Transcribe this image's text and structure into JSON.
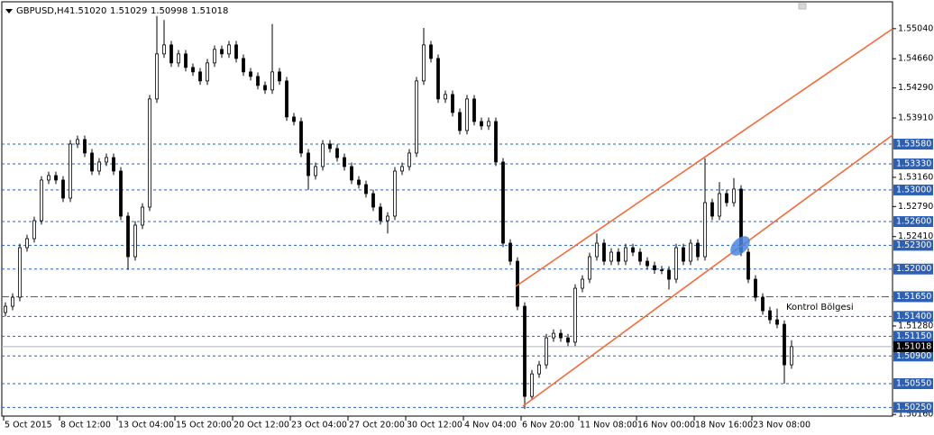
{
  "chart_data": {
    "type": "candlestick",
    "title": "GBPUSD,H4",
    "header_quote": [
      "1.51020",
      "1.51029",
      "1.50998",
      "1.51018"
    ],
    "annotation": "Kontrol Bölgesi",
    "ylim": [
      1.5014,
      1.5538
    ],
    "xlim": [
      -0.5,
      123
    ],
    "bull_color": "#ffffff",
    "bear_color": "#000000",
    "level_color": "#2d5fb3",
    "current_price": {
      "value": 1.51018,
      "label": "1.51018"
    },
    "current_price_color": "#b0b0b0",
    "yticks": [
      {
        "value": 1.5504,
        "label": "1.55040"
      },
      {
        "value": 1.5466,
        "label": "1.54660"
      },
      {
        "value": 1.5429,
        "label": "1.54290"
      },
      {
        "value": 1.5391,
        "label": "1.53910"
      },
      {
        "value": 1.5316,
        "label": "1.53160"
      },
      {
        "value": 1.5279,
        "label": "1.52790"
      },
      {
        "value": 1.5241,
        "label": "1.52410"
      },
      {
        "value": 1.5128,
        "label": "1.51280"
      },
      {
        "value": 1.5016,
        "label": "1.50160"
      }
    ],
    "levels": [
      {
        "value": 1.5358,
        "label": "1.53580",
        "style": "dash"
      },
      {
        "value": 1.5333,
        "label": "1.53330",
        "style": "dash"
      },
      {
        "value": 1.53,
        "label": "1.53000",
        "style": "dash"
      },
      {
        "value": 1.526,
        "label": "1.52600",
        "style": "dash"
      },
      {
        "value": 1.523,
        "label": "1.52300",
        "style": "dash"
      },
      {
        "value": 1.52,
        "label": "1.52000",
        "style": "dash"
      },
      {
        "value": 1.5165,
        "label": "1.51650",
        "style": "dashdot"
      },
      {
        "value": 1.514,
        "label": "1.51400",
        "style": "dash"
      },
      {
        "value": 1.5115,
        "label": "1.51150",
        "style": "dash"
      },
      {
        "value": 1.509,
        "label": "1.50900",
        "style": "dash"
      },
      {
        "value": 1.5055,
        "label": "1.50550",
        "style": "dash"
      },
      {
        "value": 1.5025,
        "label": "1.50250",
        "style": "dash"
      }
    ],
    "xticks": [
      {
        "value": -0.25,
        "label": "5 Oct 2015"
      },
      {
        "value": 7.5,
        "label": "8 Oct 12:00"
      },
      {
        "value": 15.5,
        "label": "13 Oct 04:00"
      },
      {
        "value": 23.5,
        "label": "15 Oct 20:00"
      },
      {
        "value": 31.5,
        "label": "20 Oct 12:00"
      },
      {
        "value": 39.5,
        "label": "23 Oct 04:00"
      },
      {
        "value": 47.5,
        "label": "27 Oct 20:00"
      },
      {
        "value": 55.5,
        "label": "30 Oct 12:00"
      },
      {
        "value": 63.5,
        "label": "4 Nov 04:00"
      },
      {
        "value": 71.5,
        "label": "6 Nov 20:00"
      },
      {
        "value": 79.5,
        "label": "11 Nov 08:00"
      },
      {
        "value": 87.5,
        "label": "16 Nov 00:00"
      },
      {
        "value": 95.5,
        "label": "18 Nov 16:00"
      },
      {
        "value": 103.5,
        "label": "23 Nov 08:00"
      }
    ],
    "candles": [
      [
        1.5145,
        1.51579,
        1.514,
        1.51529
      ],
      [
        1.51529,
        1.51693,
        1.51479,
        1.51643
      ],
      [
        1.51643,
        1.5232,
        1.51593,
        1.5227
      ],
      [
        1.5227,
        1.52434,
        1.5222,
        1.52384
      ],
      [
        1.52384,
        1.52662,
        1.52334,
        1.52612
      ],
      [
        1.52612,
        1.53175,
        1.52562,
        1.53125
      ],
      [
        1.53125,
        1.53232,
        1.53075,
        1.53182
      ],
      [
        1.53182,
        1.53232,
        1.53075,
        1.53125
      ],
      [
        1.53125,
        1.53175,
        1.52847,
        1.52897
      ],
      [
        1.52897,
        1.53631,
        1.52847,
        1.53581
      ],
      [
        1.53581,
        1.53688,
        1.53531,
        1.53638
      ],
      [
        1.53638,
        1.53688,
        1.53417,
        1.53467
      ],
      [
        1.53467,
        1.53517,
        1.53189,
        1.53239
      ],
      [
        1.53239,
        1.53403,
        1.53189,
        1.53353
      ],
      [
        1.53353,
        1.5346,
        1.53303,
        1.5341
      ],
      [
        1.5341,
        1.5346,
        1.53189,
        1.53239
      ],
      [
        1.53239,
        1.53289,
        1.52619,
        1.52669
      ],
      [
        1.52669,
        1.52719,
        1.5199,
        1.52156
      ],
      [
        1.52156,
        1.52605,
        1.52106,
        1.52555
      ],
      [
        1.52555,
        1.52833,
        1.52505,
        1.52783
      ],
      [
        1.52783,
        1.54201,
        1.52733,
        1.54151
      ],
      [
        1.54151,
        1.552,
        1.54101,
        1.54721
      ],
      [
        1.54721,
        1.5515,
        1.54671,
        1.54835
      ],
      [
        1.54835,
        1.54885,
        1.54557,
        1.54607
      ],
      [
        1.54607,
        1.54771,
        1.54557,
        1.54721
      ],
      [
        1.54721,
        1.54771,
        1.545,
        1.5455
      ],
      [
        1.5455,
        1.546,
        1.54443,
        1.54493
      ],
      [
        1.54493,
        1.54543,
        1.54329,
        1.54379
      ],
      [
        1.54379,
        1.54657,
        1.54329,
        1.54607
      ],
      [
        1.54607,
        1.54828,
        1.54557,
        1.54778
      ],
      [
        1.54778,
        1.54828,
        1.54671,
        1.54721
      ],
      [
        1.54721,
        1.54885,
        1.54671,
        1.54835
      ],
      [
        1.54835,
        1.54885,
        1.54614,
        1.54664
      ],
      [
        1.54664,
        1.54714,
        1.54443,
        1.54493
      ],
      [
        1.54493,
        1.54543,
        1.54386,
        1.54436
      ],
      [
        1.54436,
        1.54486,
        1.54272,
        1.54322
      ],
      [
        1.54322,
        1.54372,
        1.54215,
        1.54265
      ],
      [
        1.54265,
        1.551,
        1.54215,
        1.54493
      ],
      [
        1.54493,
        1.54543,
        1.54329,
        1.54379
      ],
      [
        1.54379,
        1.54429,
        1.53873,
        1.53923
      ],
      [
        1.53923,
        1.53973,
        1.53816,
        1.53866
      ],
      [
        1.53866,
        1.53916,
        1.53417,
        1.53467
      ],
      [
        1.53467,
        1.53517,
        1.53,
        1.53182
      ],
      [
        1.53182,
        1.53346,
        1.53132,
        1.53296
      ],
      [
        1.53296,
        1.53631,
        1.53246,
        1.53581
      ],
      [
        1.53581,
        1.53631,
        1.53474,
        1.53524
      ],
      [
        1.53524,
        1.53574,
        1.5336,
        1.5341
      ],
      [
        1.5341,
        1.5346,
        1.53246,
        1.53296
      ],
      [
        1.53296,
        1.53346,
        1.53075,
        1.53125
      ],
      [
        1.53125,
        1.53175,
        1.53018,
        1.53068
      ],
      [
        1.53068,
        1.53118,
        1.52904,
        1.52954
      ],
      [
        1.52954,
        1.53004,
        1.52733,
        1.52783
      ],
      [
        1.52783,
        1.52833,
        1.52562,
        1.52612
      ],
      [
        1.52612,
        1.52719,
        1.5245,
        1.52669
      ],
      [
        1.52669,
        1.53289,
        1.52619,
        1.53239
      ],
      [
        1.53239,
        1.53346,
        1.53189,
        1.53296
      ],
      [
        1.53296,
        1.53517,
        1.53246,
        1.53467
      ],
      [
        1.53467,
        1.54429,
        1.53417,
        1.54379
      ],
      [
        1.54379,
        1.5505,
        1.54329,
        1.54835
      ],
      [
        1.54835,
        1.54885,
        1.54614,
        1.54664
      ],
      [
        1.54664,
        1.54714,
        1.54101,
        1.54151
      ],
      [
        1.54151,
        1.54258,
        1.54101,
        1.54208
      ],
      [
        1.54208,
        1.54258,
        1.5393,
        1.5398
      ],
      [
        1.5398,
        1.5403,
        1.53702,
        1.53752
      ],
      [
        1.53752,
        1.54201,
        1.53702,
        1.54151
      ],
      [
        1.54151,
        1.54201,
        1.53816,
        1.53866
      ],
      [
        1.53866,
        1.53916,
        1.53759,
        1.53809
      ],
      [
        1.53809,
        1.53916,
        1.53759,
        1.53866
      ],
      [
        1.53866,
        1.53916,
        1.53303,
        1.53353
      ],
      [
        1.53353,
        1.53403,
        1.52277,
        1.52327
      ],
      [
        1.52327,
        1.52377,
        1.52049,
        1.52099
      ],
      [
        1.52099,
        1.52149,
        1.51479,
        1.51529
      ],
      [
        1.51529,
        1.51579,
        1.5023,
        1.50389
      ],
      [
        1.50389,
        1.50724,
        1.50339,
        1.50674
      ],
      [
        1.50674,
        1.50838,
        1.50624,
        1.50788
      ],
      [
        1.50788,
        1.5118,
        1.50738,
        1.5113
      ],
      [
        1.5113,
        1.51237,
        1.5108,
        1.51187
      ],
      [
        1.51187,
        1.51237,
        1.5108,
        1.5113
      ],
      [
        1.5113,
        1.5118,
        1.51025,
        1.51075
      ],
      [
        1.51075,
        1.51807,
        1.51025,
        1.51757
      ],
      [
        1.51757,
        1.51921,
        1.51707,
        1.51871
      ],
      [
        1.51871,
        1.52206,
        1.51821,
        1.52156
      ],
      [
        1.52156,
        1.5245,
        1.52106,
        1.52327
      ],
      [
        1.52327,
        1.52377,
        1.52049,
        1.52099
      ],
      [
        1.52099,
        1.52263,
        1.52049,
        1.52213
      ],
      [
        1.52213,
        1.52263,
        1.52049,
        1.52099
      ],
      [
        1.52099,
        1.5232,
        1.52049,
        1.5227
      ],
      [
        1.5227,
        1.5232,
        1.52163,
        1.52213
      ],
      [
        1.52213,
        1.52263,
        1.52049,
        1.52099
      ],
      [
        1.52099,
        1.52149,
        1.51992,
        1.52042
      ],
      [
        1.52042,
        1.52092,
        1.5194,
        1.5199
      ],
      [
        1.5199,
        1.5204,
        1.51935,
        1.51985
      ],
      [
        1.51985,
        1.52035,
        1.5174,
        1.51871
      ],
      [
        1.51871,
        1.5232,
        1.51821,
        1.5227
      ],
      [
        1.5227,
        1.5232,
        1.52049,
        1.52099
      ],
      [
        1.52099,
        1.52377,
        1.52049,
        1.52327
      ],
      [
        1.52327,
        1.52377,
        1.52106,
        1.52156
      ],
      [
        1.52156,
        1.534,
        1.52106,
        1.5284
      ],
      [
        1.5284,
        1.5289,
        1.52619,
        1.52669
      ],
      [
        1.52669,
        1.531,
        1.52619,
        1.52954
      ],
      [
        1.52954,
        1.53004,
        1.5279,
        1.5284
      ],
      [
        1.5284,
        1.5315,
        1.5279,
        1.53011
      ],
      [
        1.53011,
        1.53061,
        1.52163,
        1.52213
      ],
      [
        1.52213,
        1.52263,
        1.51821,
        1.51871
      ],
      [
        1.51871,
        1.51921,
        1.51593,
        1.51643
      ],
      [
        1.51643,
        1.51693,
        1.51422,
        1.51472
      ],
      [
        1.51472,
        1.51522,
        1.51308,
        1.51358
      ],
      [
        1.51358,
        1.515,
        1.51251,
        1.51301
      ],
      [
        1.51301,
        1.51351,
        1.5055,
        1.50788
      ],
      [
        1.50788,
        1.511,
        1.50738,
        1.51018
      ]
    ]
  }
}
